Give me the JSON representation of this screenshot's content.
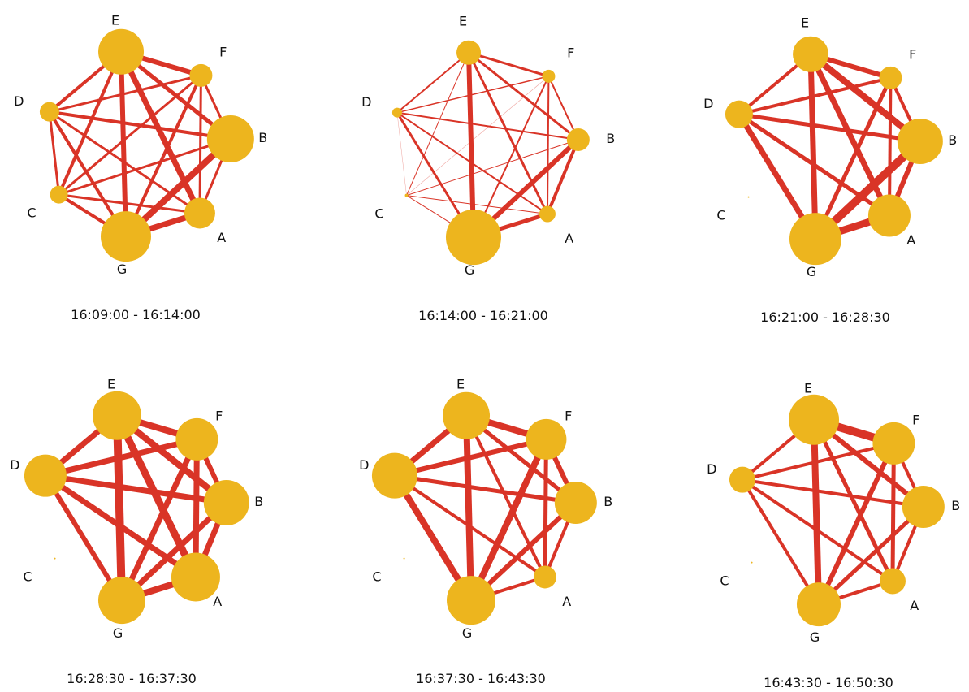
{
  "colors": {
    "edge": "#d93427",
    "node": "#edb51e",
    "text": "#111111"
  },
  "panels": [
    {
      "caption": "16:09:00 - 16:14:00",
      "nodes": [
        {
          "id": "E",
          "size": 28
        },
        {
          "id": "F",
          "size": 14
        },
        {
          "id": "B",
          "size": 29
        },
        {
          "id": "A",
          "size": 19
        },
        {
          "id": "G",
          "size": 31
        },
        {
          "id": "C",
          "size": 11
        },
        {
          "id": "D",
          "size": 12
        }
      ],
      "edges": [
        [
          "E",
          "F",
          6
        ],
        [
          "E",
          "B",
          5
        ],
        [
          "E",
          "A",
          7
        ],
        [
          "E",
          "G",
          6
        ],
        [
          "E",
          "C",
          4
        ],
        [
          "E",
          "D",
          4
        ],
        [
          "F",
          "B",
          3
        ],
        [
          "F",
          "A",
          3
        ],
        [
          "F",
          "G",
          4
        ],
        [
          "F",
          "C",
          3
        ],
        [
          "F",
          "D",
          3
        ],
        [
          "B",
          "A",
          3
        ],
        [
          "B",
          "G",
          8
        ],
        [
          "B",
          "C",
          3
        ],
        [
          "B",
          "D",
          4
        ],
        [
          "A",
          "G",
          7
        ],
        [
          "A",
          "C",
          3
        ],
        [
          "A",
          "D",
          3
        ],
        [
          "G",
          "C",
          4
        ],
        [
          "G",
          "D",
          4
        ],
        [
          "C",
          "D",
          3
        ]
      ]
    },
    {
      "caption": "16:14:00 - 16:21:00",
      "nodes": [
        {
          "id": "E",
          "size": 15
        },
        {
          "id": "F",
          "size": 8
        },
        {
          "id": "B",
          "size": 14
        },
        {
          "id": "A",
          "size": 10
        },
        {
          "id": "G",
          "size": 34
        },
        {
          "id": "C",
          "size": 2
        },
        {
          "id": "D",
          "size": 6
        }
      ],
      "edges": [
        [
          "E",
          "F",
          3
        ],
        [
          "E",
          "B",
          3
        ],
        [
          "E",
          "A",
          3
        ],
        [
          "E",
          "G",
          6
        ],
        [
          "E",
          "C",
          1
        ],
        [
          "E",
          "D",
          2
        ],
        [
          "F",
          "B",
          2
        ],
        [
          "F",
          "A",
          2
        ],
        [
          "F",
          "G",
          2
        ],
        [
          "F",
          "C",
          0.6
        ],
        [
          "F",
          "D",
          1.5
        ],
        [
          "B",
          "A",
          4
        ],
        [
          "B",
          "G",
          6
        ],
        [
          "B",
          "C",
          1
        ],
        [
          "B",
          "D",
          2
        ],
        [
          "A",
          "G",
          5
        ],
        [
          "A",
          "C",
          1
        ],
        [
          "A",
          "D",
          2
        ],
        [
          "G",
          "C",
          1
        ],
        [
          "G",
          "D",
          3
        ],
        [
          "C",
          "D",
          0.5
        ]
      ]
    },
    {
      "caption": "16:21:00 - 16:28:30",
      "nodes": [
        {
          "id": "E",
          "size": 22
        },
        {
          "id": "F",
          "size": 14
        },
        {
          "id": "B",
          "size": 28
        },
        {
          "id": "A",
          "size": 26
        },
        {
          "id": "G",
          "size": 32
        },
        {
          "id": "C",
          "size": 1
        },
        {
          "id": "D",
          "size": 17
        }
      ],
      "edges": [
        [
          "E",
          "F",
          6
        ],
        [
          "E",
          "B",
          8
        ],
        [
          "E",
          "A",
          7
        ],
        [
          "E",
          "G",
          7
        ],
        [
          "E",
          "D",
          4
        ],
        [
          "F",
          "B",
          4
        ],
        [
          "F",
          "A",
          4
        ],
        [
          "F",
          "G",
          5
        ],
        [
          "F",
          "D",
          4
        ],
        [
          "B",
          "A",
          6
        ],
        [
          "B",
          "G",
          10
        ],
        [
          "B",
          "D",
          5
        ],
        [
          "A",
          "G",
          9
        ],
        [
          "A",
          "D",
          5
        ],
        [
          "G",
          "D",
          7
        ]
      ]
    },
    {
      "caption": "16:28:30 - 16:37:30",
      "nodes": [
        {
          "id": "E",
          "size": 30
        },
        {
          "id": "F",
          "size": 26
        },
        {
          "id": "B",
          "size": 28
        },
        {
          "id": "A",
          "size": 30
        },
        {
          "id": "G",
          "size": 29
        },
        {
          "id": "C",
          "size": 1
        },
        {
          "id": "D",
          "size": 26
        }
      ],
      "edges": [
        [
          "E",
          "F",
          8
        ],
        [
          "E",
          "B",
          8
        ],
        [
          "E",
          "A",
          9
        ],
        [
          "E",
          "G",
          10
        ],
        [
          "E",
          "D",
          7
        ],
        [
          "F",
          "B",
          6
        ],
        [
          "F",
          "A",
          7
        ],
        [
          "F",
          "G",
          7
        ],
        [
          "F",
          "D",
          7
        ],
        [
          "B",
          "A",
          7
        ],
        [
          "B",
          "G",
          7
        ],
        [
          "B",
          "D",
          7
        ],
        [
          "A",
          "G",
          8
        ],
        [
          "A",
          "D",
          7
        ],
        [
          "G",
          "D",
          6
        ]
      ]
    },
    {
      "caption": "16:37:30 - 16:43:30",
      "nodes": [
        {
          "id": "E",
          "size": 29
        },
        {
          "id": "F",
          "size": 25
        },
        {
          "id": "B",
          "size": 26
        },
        {
          "id": "A",
          "size": 14
        },
        {
          "id": "G",
          "size": 30
        },
        {
          "id": "C",
          "size": 1
        },
        {
          "id": "D",
          "size": 28
        }
      ],
      "edges": [
        [
          "E",
          "F",
          8
        ],
        [
          "E",
          "B",
          5
        ],
        [
          "E",
          "A",
          4
        ],
        [
          "E",
          "G",
          8
        ],
        [
          "E",
          "D",
          7
        ],
        [
          "F",
          "B",
          6
        ],
        [
          "F",
          "A",
          5
        ],
        [
          "F",
          "G",
          8
        ],
        [
          "F",
          "D",
          6
        ],
        [
          "B",
          "A",
          4
        ],
        [
          "B",
          "G",
          6
        ],
        [
          "B",
          "D",
          5
        ],
        [
          "A",
          "G",
          4
        ],
        [
          "A",
          "D",
          4
        ],
        [
          "G",
          "D",
          8
        ]
      ]
    },
    {
      "caption": "16:43:30 - 16:50:30",
      "nodes": [
        {
          "id": "E",
          "size": 31
        },
        {
          "id": "F",
          "size": 26
        },
        {
          "id": "B",
          "size": 26
        },
        {
          "id": "A",
          "size": 16
        },
        {
          "id": "G",
          "size": 27
        },
        {
          "id": "C",
          "size": 1
        },
        {
          "id": "D",
          "size": 16
        }
      ],
      "edges": [
        [
          "E",
          "F",
          10
        ],
        [
          "E",
          "B",
          6
        ],
        [
          "E",
          "A",
          5
        ],
        [
          "E",
          "G",
          8
        ],
        [
          "E",
          "D",
          4
        ],
        [
          "F",
          "B",
          4
        ],
        [
          "F",
          "A",
          5
        ],
        [
          "F",
          "G",
          6
        ],
        [
          "F",
          "D",
          4
        ],
        [
          "B",
          "A",
          4
        ],
        [
          "B",
          "G",
          5
        ],
        [
          "B",
          "D",
          4
        ],
        [
          "A",
          "G",
          4
        ],
        [
          "A",
          "D",
          4
        ],
        [
          "G",
          "D",
          4
        ]
      ]
    }
  ]
}
